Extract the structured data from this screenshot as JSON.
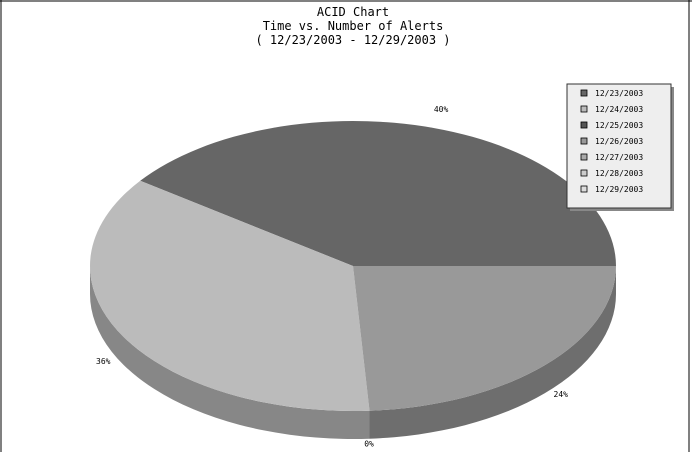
{
  "chart_data": {
    "type": "pie",
    "title": "ACID Chart",
    "subtitle": "Time vs. Number of Alerts",
    "date_range": "( 12/23/2003 - 12/29/2003 )",
    "legend_position": "top-right",
    "slices": [
      {
        "label": "12/23/2003",
        "value": 40,
        "value_label": "40%",
        "color": "#666666"
      },
      {
        "label": "12/24/2003",
        "value": 36,
        "value_label": "36%",
        "color": "#bbbbbb"
      },
      {
        "label": "12/25/2003",
        "value": 0,
        "value_label": "0%",
        "color": "#555555"
      },
      {
        "label": "12/26/2003",
        "value": 24,
        "value_label": "24%",
        "color": "#999999"
      },
      {
        "label": "12/27/2003",
        "value": 0,
        "value_label": "",
        "color": "#aaaaaa"
      },
      {
        "label": "12/28/2003",
        "value": 0,
        "value_label": "",
        "color": "#cccccc"
      },
      {
        "label": "12/29/2003",
        "value": 0,
        "value_label": "",
        "color": "#dddddd"
      }
    ],
    "pie_draw_order": [
      0,
      1,
      2,
      3
    ],
    "three_d": true
  }
}
